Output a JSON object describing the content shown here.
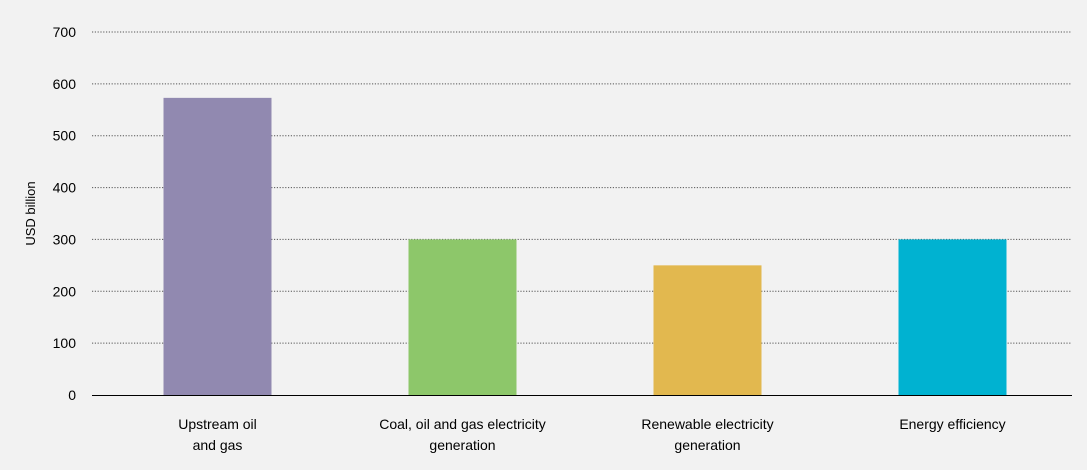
{
  "chart_data": {
    "type": "bar",
    "title": "",
    "xlabel": "",
    "ylabel": "USD billion",
    "ylim": [
      0,
      700
    ],
    "yticks": [
      0,
      100,
      200,
      300,
      400,
      500,
      600,
      700
    ],
    "grid": true,
    "legend": "none",
    "categories": [
      [
        "Upstream oil",
        "and gas"
      ],
      [
        "Coal, oil and gas electricity",
        "generation"
      ],
      [
        "Renewable electricity",
        "generation"
      ],
      [
        "Energy efficiency"
      ]
    ],
    "values": [
      573,
      300,
      250,
      300
    ],
    "colors": [
      "#9189b0",
      "#8dc76a",
      "#e2b84f",
      "#00b2d1"
    ]
  }
}
